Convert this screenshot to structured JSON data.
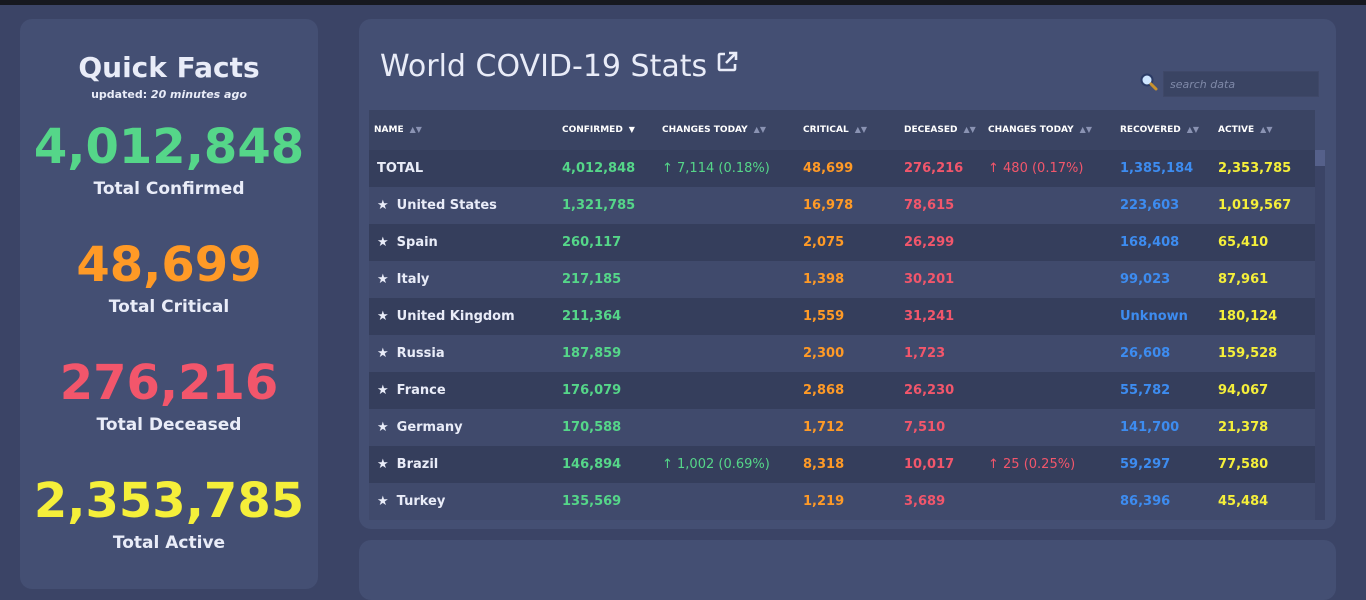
{
  "quick_facts": {
    "title": "Quick Facts",
    "updated_prefix": "updated: ",
    "updated_value": "20 minutes ago",
    "facts": [
      {
        "value": "4,012,848",
        "label": "Total Confirmed",
        "color": "#55d689"
      },
      {
        "value": "48,699",
        "label": "Total Critical",
        "color": "#ff9a26"
      },
      {
        "value": "276,216",
        "label": "Total Deceased",
        "color": "#f2566b"
      },
      {
        "value": "2,353,785",
        "label": "Total Active",
        "color": "#f5ef3a"
      }
    ]
  },
  "stats": {
    "title": "World COVID-19 Stats",
    "title_icon": "external-link-icon",
    "search": {
      "placeholder": "search data",
      "value": "",
      "icon": "search-icon"
    },
    "columns": [
      "NAME",
      "CONFIRMED",
      "CHANGES TODAY",
      "CRITICAL",
      "DECEASED",
      "CHANGES TODAY",
      "RECOVERED",
      "ACTIVE"
    ],
    "sort_column": "CONFIRMED",
    "rows": [
      {
        "star": false,
        "name": "TOTAL",
        "confirmed": "4,012,848",
        "changes": "↑ 7,114 (0.18%)",
        "critical": "48,699",
        "deceased": "276,216",
        "dchanges": "↑ 480 (0.17%)",
        "recovered": "1,385,184",
        "active": "2,353,785"
      },
      {
        "star": true,
        "name": "United States",
        "confirmed": "1,321,785",
        "changes": "",
        "critical": "16,978",
        "deceased": "78,615",
        "dchanges": "",
        "recovered": "223,603",
        "active": "1,019,567"
      },
      {
        "star": true,
        "name": "Spain",
        "confirmed": "260,117",
        "changes": "",
        "critical": "2,075",
        "deceased": "26,299",
        "dchanges": "",
        "recovered": "168,408",
        "active": "65,410"
      },
      {
        "star": true,
        "name": "Italy",
        "confirmed": "217,185",
        "changes": "",
        "critical": "1,398",
        "deceased": "30,201",
        "dchanges": "",
        "recovered": "99,023",
        "active": "87,961"
      },
      {
        "star": true,
        "name": "United Kingdom",
        "confirmed": "211,364",
        "changes": "",
        "critical": "1,559",
        "deceased": "31,241",
        "dchanges": "",
        "recovered": "Unknown",
        "active": "180,124"
      },
      {
        "star": true,
        "name": "Russia",
        "confirmed": "187,859",
        "changes": "",
        "critical": "2,300",
        "deceased": "1,723",
        "dchanges": "",
        "recovered": "26,608",
        "active": "159,528"
      },
      {
        "star": true,
        "name": "France",
        "confirmed": "176,079",
        "changes": "",
        "critical": "2,868",
        "deceased": "26,230",
        "dchanges": "",
        "recovered": "55,782",
        "active": "94,067"
      },
      {
        "star": true,
        "name": "Germany",
        "confirmed": "170,588",
        "changes": "",
        "critical": "1,712",
        "deceased": "7,510",
        "dchanges": "",
        "recovered": "141,700",
        "active": "21,378"
      },
      {
        "star": true,
        "name": "Brazil",
        "confirmed": "146,894",
        "changes": "↑ 1,002 (0.69%)",
        "critical": "8,318",
        "deceased": "10,017",
        "dchanges": "↑ 25 (0.25%)",
        "recovered": "59,297",
        "active": "77,580"
      },
      {
        "star": true,
        "name": "Turkey",
        "confirmed": "135,569",
        "changes": "",
        "critical": "1,219",
        "deceased": "3,689",
        "dchanges": "",
        "recovered": "86,396",
        "active": "45,484"
      }
    ]
  }
}
